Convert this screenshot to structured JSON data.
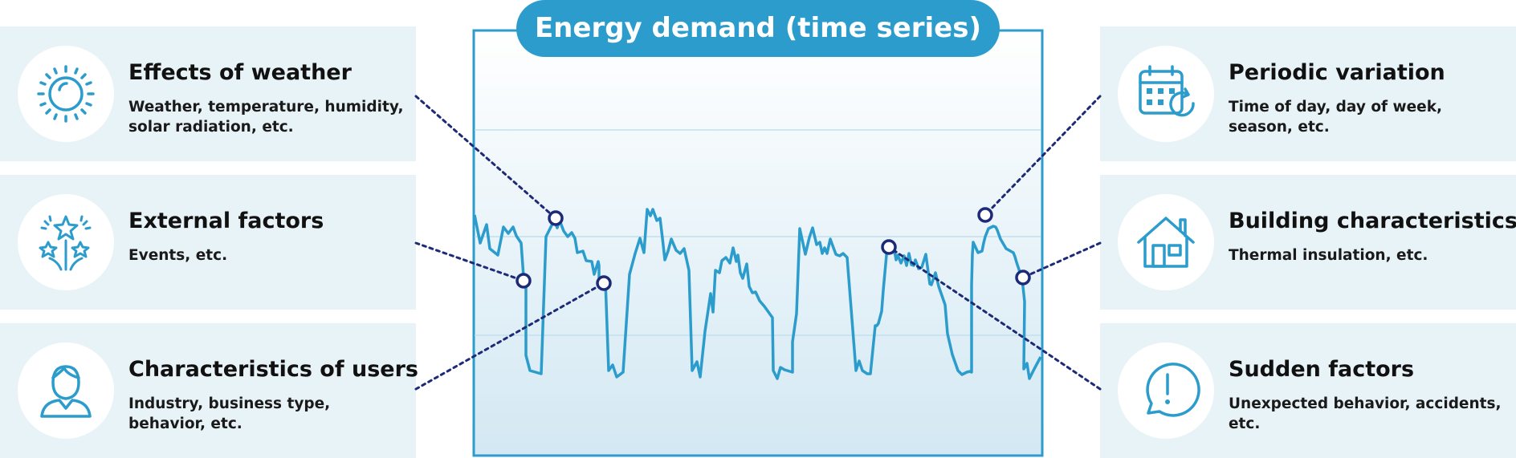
{
  "title": "Energy demand (time series)",
  "factors": {
    "weather": {
      "title": "Effects of weather",
      "description": "Weather, temperature, humidity, solar radiation, etc.",
      "icon": "sun-icon"
    },
    "external": {
      "title": "External factors",
      "description": "Events, etc.",
      "icon": "fireworks-icon"
    },
    "users": {
      "title": "Characteristics of users",
      "description": "Industry, business type, behavior, etc.",
      "icon": "user-icon"
    },
    "periodic": {
      "title": "Periodic variation",
      "description": "Time of day, day of week, season, etc.",
      "icon": "calendar-cycle-icon"
    },
    "building": {
      "title": "Building characteristics",
      "description": "Thermal insulation, etc.",
      "icon": "house-icon"
    },
    "sudden": {
      "title": "Sudden factors",
      "description": "Unexpected behavior, accidents, etc.",
      "icon": "speech-exclamation-icon"
    }
  },
  "colors": {
    "accent": "#2b9ccc",
    "panel": "#e8f3f8",
    "connector": "#1d2a78"
  }
}
